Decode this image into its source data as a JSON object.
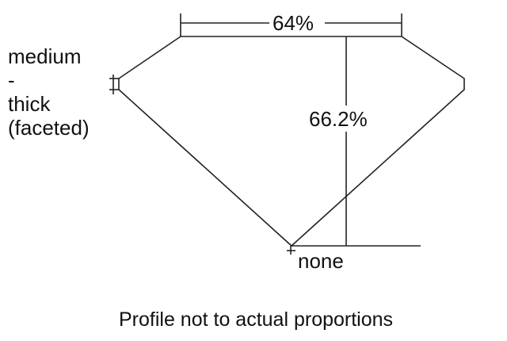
{
  "girdle_label": [
    "medium",
    "-",
    "thick",
    "(faceted)"
  ],
  "table_label": "64%",
  "depth_label": "66.2%",
  "culet_label": "none",
  "caption": "Profile not to actual proportions"
}
